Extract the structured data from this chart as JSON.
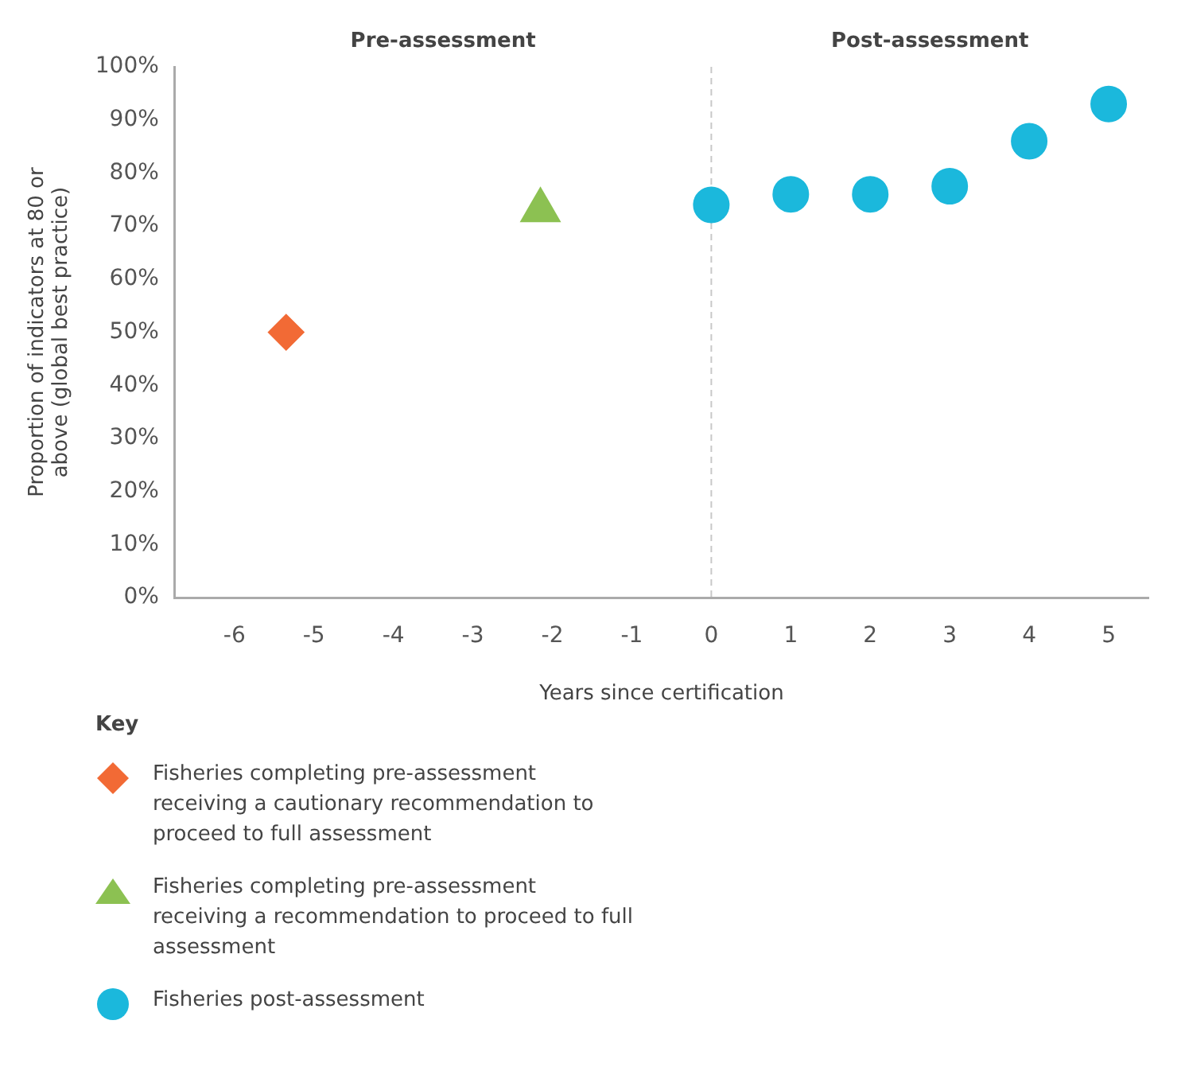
{
  "chart_data": {
    "type": "scatter",
    "xlabel": "Years since certification",
    "ylabel": "Proportion of indicators at 80 or above (global best practice)",
    "legend_title": "Key",
    "legend": "bottom",
    "annotations": [
      "Pre-assessment",
      "Post-assessment"
    ],
    "xlim": [
      -6.75,
      5.5
    ],
    "xticks": [
      -6,
      -5,
      -4,
      -3,
      -2,
      -1,
      0,
      1,
      2,
      3,
      4,
      5
    ],
    "ylim": [
      0,
      100
    ],
    "yticks": [
      {
        "value": 0,
        "label": "0%"
      },
      {
        "value": 10,
        "label": "10%"
      },
      {
        "value": 20,
        "label": "20%"
      },
      {
        "value": 30,
        "label": "30%"
      },
      {
        "value": 40,
        "label": "40%"
      },
      {
        "value": 50,
        "label": "50%"
      },
      {
        "value": 60,
        "label": "60%"
      },
      {
        "value": 70,
        "label": "70%"
      },
      {
        "value": 80,
        "label": "80%"
      },
      {
        "value": 90,
        "label": "90%"
      },
      {
        "value": 100,
        "label": "100%"
      }
    ],
    "grid": false,
    "ref_lines": [
      {
        "axis": "x",
        "value": 0,
        "color": "#c8c8c8",
        "line_style": "dashed"
      }
    ],
    "series": [
      {
        "name": "Fisheries completing pre-assessment receiving a cautionary recommendation to proceed to full assessment",
        "color": "#f26a35",
        "marker": "diamond",
        "x": [
          -5.35
        ],
        "values": [
          50
        ]
      },
      {
        "name": "Fisheries completing pre-assessment receiving a recommendation to proceed to full assessment",
        "color": "#8cc152",
        "marker": "triangle",
        "x": [
          -2.15
        ],
        "values": [
          73
        ]
      },
      {
        "name": "Fisheries post-assessment",
        "color": "#1bb8dc",
        "marker": "circle",
        "x": [
          0,
          1,
          2,
          3,
          4,
          5
        ],
        "values": [
          74,
          76,
          76,
          77.5,
          86,
          93
        ]
      }
    ]
  }
}
